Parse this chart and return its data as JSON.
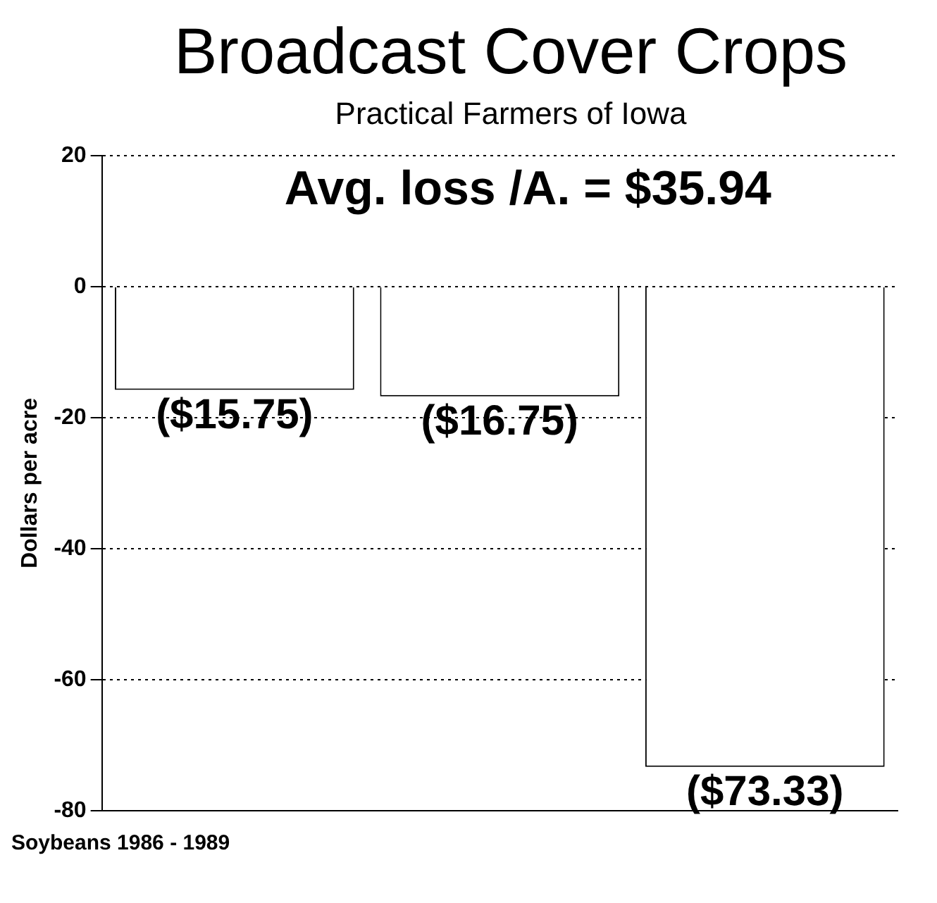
{
  "chart_data": {
    "type": "bar",
    "title": "Broadcast Cover Crops",
    "subtitle": "Practical Farmers of Iowa",
    "ylabel": "Dollars per acre",
    "categories": [
      null,
      null,
      null
    ],
    "values": [
      -15.75,
      -16.75,
      -73.33
    ],
    "value_labels": [
      "($15.75)",
      "($16.75)",
      "($73.33)"
    ],
    "color": "#ffffff",
    "ylim": [
      -80,
      20
    ],
    "yticks": [
      20,
      0,
      -20,
      -40,
      -60,
      -80
    ],
    "grid": "y",
    "legend": false,
    "annotations": [
      "Avg. loss /A. = $35.94",
      "Soybeans 1986 - 1989"
    ]
  }
}
